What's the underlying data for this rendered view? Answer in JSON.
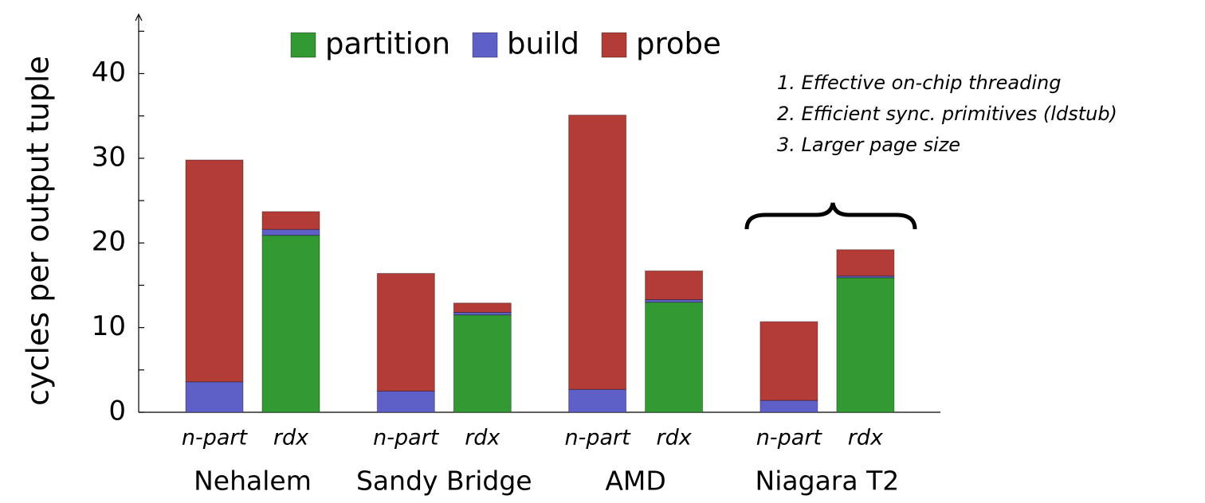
{
  "chart_data": {
    "type": "stacked_bar",
    "ylabel": "cycles per output tuple",
    "categories": [
      "n-part",
      "rdx",
      "n-part",
      "rdx",
      "n-part",
      "rdx",
      "n-part",
      "rdx"
    ],
    "groups": [
      "Nehalem",
      "Sandy Bridge",
      "AMD",
      "Niagara T2"
    ],
    "series": [
      {
        "name": "partition",
        "color": "#339933",
        "values": [
          0,
          20.9,
          0,
          11.5,
          0,
          13.0,
          0,
          15.9
        ]
      },
      {
        "name": "build",
        "color": "#5f5fc8",
        "values": [
          3.6,
          0.7,
          2.5,
          0.3,
          2.7,
          0.3,
          1.4,
          0.2
        ]
      },
      {
        "name": "probe",
        "color": "#b33c36",
        "values": [
          26.2,
          2.1,
          13.9,
          1.1,
          32.4,
          3.4,
          9.3,
          3.1
        ]
      }
    ],
    "ylim": [
      0,
      47
    ],
    "yticks": [
      0,
      10,
      20,
      30,
      40
    ],
    "yminorticks": [
      5,
      15,
      25,
      35,
      45
    ],
    "annotations": [
      "1. Effective on-chip threading",
      "2. Efficient sync. primitives (ldstub)",
      "3. Larger page size"
    ]
  }
}
